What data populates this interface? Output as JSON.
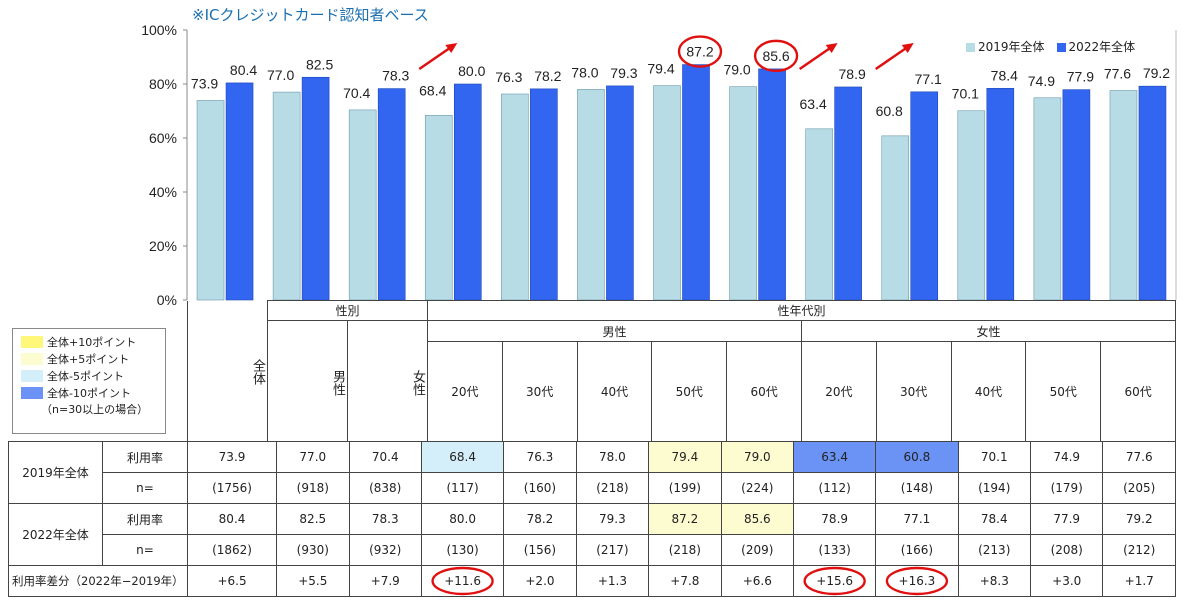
{
  "note": "※ICクレジットカード認知者ベース",
  "legend": {
    "items": [
      {
        "label": "全体+10ポイント",
        "color": "#fff77a"
      },
      {
        "label": "全体+5ポイント",
        "color": "#fdfbd0"
      },
      {
        "label": "全体-5ポイント",
        "color": "#d5effa"
      },
      {
        "label": "全体-10ポイント",
        "color": "#6a93f5"
      }
    ],
    "note": "（n=30以上の場合）"
  },
  "header": {
    "all_label": "全体",
    "gender_label": "性別",
    "male_label": "男性",
    "female_label": "女性",
    "gender_age_label": "性年代別",
    "age_groups": [
      "20代",
      "30代",
      "40代",
      "50代",
      "60代",
      "20代",
      "30代",
      "40代",
      "50代",
      "60代"
    ]
  },
  "rows": {
    "r2019_label": "2019年全体",
    "r2022_label": "2022年全体",
    "rate_label": "利用率",
    "n_label": "n=",
    "diff_label": "利用率差分（2022年−2019年）",
    "rate2019": [
      "73.9",
      "77.0",
      "70.4",
      "68.4",
      "76.3",
      "78.0",
      "79.4",
      "79.0",
      "63.4",
      "60.8",
      "70.1",
      "74.9",
      "77.6"
    ],
    "n2019": [
      "(1756)",
      "(918)",
      "(838)",
      "(117)",
      "(160)",
      "(218)",
      "(199)",
      "(224)",
      "(112)",
      "(148)",
      "(194)",
      "(179)",
      "(205)"
    ],
    "rate2022": [
      "80.4",
      "82.5",
      "78.3",
      "80.0",
      "78.2",
      "79.3",
      "87.2",
      "85.6",
      "78.9",
      "77.1",
      "78.4",
      "77.9",
      "79.2"
    ],
    "n2022": [
      "(1862)",
      "(930)",
      "(932)",
      "(130)",
      "(156)",
      "(217)",
      "(218)",
      "(209)",
      "(133)",
      "(166)",
      "(213)",
      "(208)",
      "(212)"
    ],
    "diff": [
      "+6.5",
      "+5.5",
      "+7.9",
      "+11.6",
      "+2.0",
      "+1.3",
      "+7.8",
      "+6.6",
      "+15.6",
      "+16.3",
      "+8.3",
      "+3.0",
      "+1.7"
    ],
    "highlight2019": [
      "",
      "",
      "",
      "#d5effa",
      "",
      "",
      "#fdfbd0",
      "#fdfbd0",
      "#6a93f5",
      "#6a93f5",
      "",
      "",
      ""
    ],
    "highlight2022": [
      "",
      "",
      "",
      "",
      "",
      "",
      "#fdfbd0",
      "#fdfbd0",
      "",
      "",
      "",
      "",
      ""
    ]
  },
  "chart_data": {
    "type": "bar",
    "categories": [
      "全体",
      "男性",
      "女性",
      "男性20代",
      "男性30代",
      "男性40代",
      "男性50代",
      "男性60代",
      "女性20代",
      "女性30代",
      "女性40代",
      "女性50代",
      "女性60代"
    ],
    "series": [
      {
        "name": "2019年全体",
        "color": "#b8dce6",
        "values": [
          73.9,
          77.0,
          70.4,
          68.4,
          76.3,
          78.0,
          79.4,
          79.0,
          63.4,
          60.8,
          70.1,
          74.9,
          77.6
        ]
      },
      {
        "name": "2022年全体",
        "color": "#3366f0",
        "values": [
          80.4,
          82.5,
          78.3,
          80.0,
          78.2,
          79.3,
          87.2,
          85.6,
          78.9,
          77.1,
          78.4,
          77.9,
          79.2
        ]
      }
    ],
    "ylim": [
      0,
      100
    ],
    "yticks": [
      "0%",
      "20%",
      "40%",
      "60%",
      "80%",
      "100%"
    ],
    "circled_values": [
      6,
      7
    ],
    "arrow_categories": [
      3,
      8,
      9
    ],
    "circled_diff": [
      3,
      8,
      9
    ]
  }
}
